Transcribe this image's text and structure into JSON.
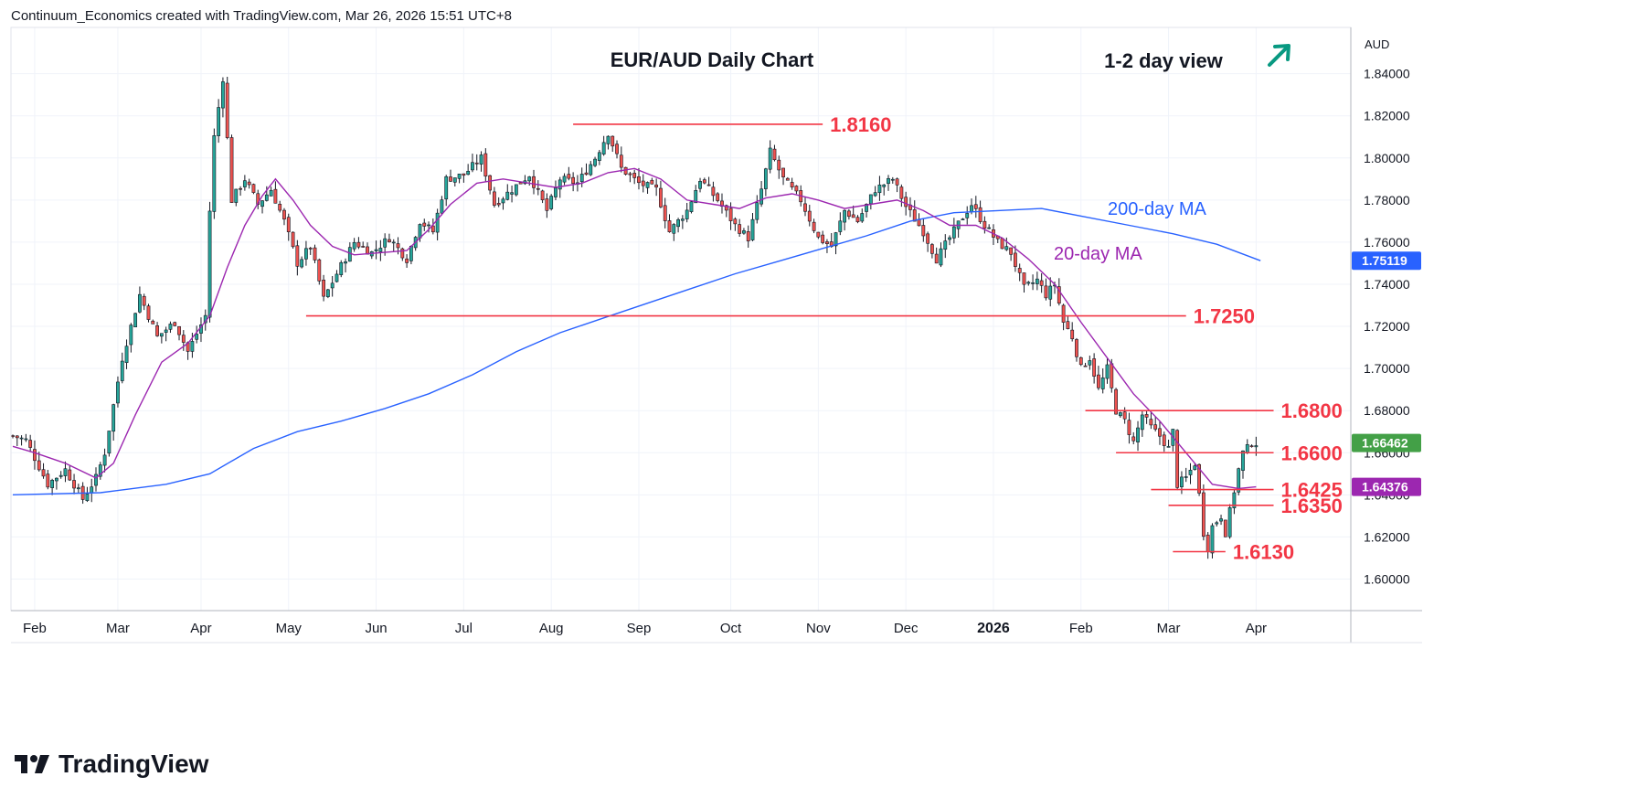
{
  "header": {
    "attribution": "Continuum_Economics created with TradingView.com, Mar 26, 2026 15:51 UTC+8"
  },
  "brand": {
    "name": "TradingView"
  },
  "chart_data": {
    "type": "candlestick",
    "title": "EUR/AUD Daily Chart",
    "subtitle": "1-2 day view",
    "view_direction": "up",
    "currency_label": "AUD",
    "ylim": [
      1.585,
      1.862
    ],
    "y_ticks": [
      {
        "value": 1.84,
        "label": "1.84000"
      },
      {
        "value": 1.82,
        "label": "1.82000"
      },
      {
        "value": 1.8,
        "label": "1.80000"
      },
      {
        "value": 1.78,
        "label": "1.78000"
      },
      {
        "value": 1.76,
        "label": "1.76000"
      },
      {
        "value": 1.74,
        "label": "1.74000"
      },
      {
        "value": 1.72,
        "label": "1.72000"
      },
      {
        "value": 1.7,
        "label": "1.70000"
      },
      {
        "value": 1.68,
        "label": "1.68000"
      },
      {
        "value": 1.66,
        "label": "1.66000"
      },
      {
        "value": 1.64,
        "label": "1.64000"
      },
      {
        "value": 1.62,
        "label": "1.62000"
      },
      {
        "value": 1.6,
        "label": "1.60000"
      }
    ],
    "x_ticks": [
      {
        "t": 5,
        "label": "Feb"
      },
      {
        "t": 24,
        "label": "Mar"
      },
      {
        "t": 43,
        "label": "Apr"
      },
      {
        "t": 63,
        "label": "May"
      },
      {
        "t": 83,
        "label": "Jun"
      },
      {
        "t": 103,
        "label": "Jul"
      },
      {
        "t": 123,
        "label": "Aug"
      },
      {
        "t": 143,
        "label": "Sep"
      },
      {
        "t": 164,
        "label": "Oct"
      },
      {
        "t": 184,
        "label": "Nov"
      },
      {
        "t": 204,
        "label": "Dec"
      },
      {
        "t": 224,
        "label": "2026"
      },
      {
        "t": 244,
        "label": "Feb"
      },
      {
        "t": 264,
        "label": "Mar"
      },
      {
        "t": 284,
        "label": "Apr"
      }
    ],
    "price_key": [
      {
        "t": 0,
        "v": 1.668
      },
      {
        "t": 3,
        "v": 1.666
      },
      {
        "t": 8,
        "v": 1.645
      },
      {
        "t": 12,
        "v": 1.652
      },
      {
        "t": 16,
        "v": 1.638
      },
      {
        "t": 19,
        "v": 1.648
      },
      {
        "t": 21,
        "v": 1.66
      },
      {
        "t": 25,
        "v": 1.705
      },
      {
        "t": 29,
        "v": 1.735
      },
      {
        "t": 33,
        "v": 1.715
      },
      {
        "t": 37,
        "v": 1.722
      },
      {
        "t": 40,
        "v": 1.708
      },
      {
        "t": 44,
        "v": 1.725
      },
      {
        "t": 45,
        "v": 1.775
      },
      {
        "t": 46,
        "v": 1.81
      },
      {
        "t": 48,
        "v": 1.838
      },
      {
        "t": 50,
        "v": 1.78
      },
      {
        "t": 53,
        "v": 1.79
      },
      {
        "t": 56,
        "v": 1.778
      },
      {
        "t": 59,
        "v": 1.785
      },
      {
        "t": 62,
        "v": 1.77
      },
      {
        "t": 65,
        "v": 1.75
      },
      {
        "t": 68,
        "v": 1.758
      },
      {
        "t": 71,
        "v": 1.733
      },
      {
        "t": 74,
        "v": 1.745
      },
      {
        "t": 78,
        "v": 1.76
      },
      {
        "t": 82,
        "v": 1.755
      },
      {
        "t": 86,
        "v": 1.762
      },
      {
        "t": 90,
        "v": 1.752
      },
      {
        "t": 93,
        "v": 1.77
      },
      {
        "t": 96,
        "v": 1.765
      },
      {
        "t": 99,
        "v": 1.79
      },
      {
        "t": 103,
        "v": 1.792
      },
      {
        "t": 107,
        "v": 1.8
      },
      {
        "t": 110,
        "v": 1.778
      },
      {
        "t": 114,
        "v": 1.785
      },
      {
        "t": 118,
        "v": 1.792
      },
      {
        "t": 122,
        "v": 1.775
      },
      {
        "t": 125,
        "v": 1.79
      },
      {
        "t": 129,
        "v": 1.788
      },
      {
        "t": 133,
        "v": 1.8
      },
      {
        "t": 136,
        "v": 1.812
      },
      {
        "t": 139,
        "v": 1.795
      },
      {
        "t": 143,
        "v": 1.788
      },
      {
        "t": 147,
        "v": 1.785
      },
      {
        "t": 150,
        "v": 1.765
      },
      {
        "t": 154,
        "v": 1.775
      },
      {
        "t": 157,
        "v": 1.79
      },
      {
        "t": 161,
        "v": 1.78
      },
      {
        "t": 165,
        "v": 1.768
      },
      {
        "t": 168,
        "v": 1.762
      },
      {
        "t": 171,
        "v": 1.785
      },
      {
        "t": 173,
        "v": 1.803
      },
      {
        "t": 176,
        "v": 1.79
      },
      {
        "t": 180,
        "v": 1.78
      },
      {
        "t": 184,
        "v": 1.762
      },
      {
        "t": 187,
        "v": 1.758
      },
      {
        "t": 190,
        "v": 1.775
      },
      {
        "t": 193,
        "v": 1.77
      },
      {
        "t": 197,
        "v": 1.785
      },
      {
        "t": 201,
        "v": 1.79
      },
      {
        "t": 204,
        "v": 1.777
      },
      {
        "t": 208,
        "v": 1.765
      },
      {
        "t": 211,
        "v": 1.752
      },
      {
        "t": 214,
        "v": 1.762
      },
      {
        "t": 217,
        "v": 1.772
      },
      {
        "t": 219,
        "v": 1.778
      },
      {
        "t": 222,
        "v": 1.768
      },
      {
        "t": 225,
        "v": 1.76
      },
      {
        "t": 228,
        "v": 1.755
      },
      {
        "t": 231,
        "v": 1.738
      },
      {
        "t": 234,
        "v": 1.742
      },
      {
        "t": 236,
        "v": 1.735
      },
      {
        "t": 238,
        "v": 1.74
      },
      {
        "t": 240,
        "v": 1.722
      },
      {
        "t": 242,
        "v": 1.715
      },
      {
        "t": 244,
        "v": 1.7
      },
      {
        "t": 246,
        "v": 1.705
      },
      {
        "t": 248,
        "v": 1.69
      },
      {
        "t": 250,
        "v": 1.7
      },
      {
        "t": 252,
        "v": 1.68
      },
      {
        "t": 254,
        "v": 1.675
      },
      {
        "t": 256,
        "v": 1.665
      },
      {
        "t": 258,
        "v": 1.678
      },
      {
        "t": 260,
        "v": 1.672
      },
      {
        "t": 262,
        "v": 1.668
      },
      {
        "t": 264,
        "v": 1.662
      },
      {
        "t": 265,
        "v": 1.67
      },
      {
        "t": 266,
        "v": 1.645
      },
      {
        "t": 268,
        "v": 1.648
      },
      {
        "t": 270,
        "v": 1.655
      },
      {
        "t": 271,
        "v": 1.64
      },
      {
        "t": 272,
        "v": 1.622
      },
      {
        "t": 273,
        "v": 1.615
      },
      {
        "t": 274,
        "v": 1.625
      },
      {
        "t": 276,
        "v": 1.63
      },
      {
        "t": 277,
        "v": 1.622
      },
      {
        "t": 278,
        "v": 1.632
      },
      {
        "t": 279,
        "v": 1.642
      },
      {
        "t": 280,
        "v": 1.652
      },
      {
        "t": 281,
        "v": 1.66
      },
      {
        "t": 282,
        "v": 1.662
      },
      {
        "t": 283,
        "v": 1.665
      },
      {
        "t": 284,
        "v": 1.6646
      }
    ],
    "ma_200": {
      "label": "200-day MA",
      "color": "#2962ff",
      "points": [
        {
          "t": 0,
          "v": 1.64
        },
        {
          "t": 20,
          "v": 1.641
        },
        {
          "t": 35,
          "v": 1.645
        },
        {
          "t": 45,
          "v": 1.65
        },
        {
          "t": 55,
          "v": 1.662
        },
        {
          "t": 65,
          "v": 1.67
        },
        {
          "t": 75,
          "v": 1.675
        },
        {
          "t": 85,
          "v": 1.681
        },
        {
          "t": 95,
          "v": 1.688
        },
        {
          "t": 105,
          "v": 1.697
        },
        {
          "t": 115,
          "v": 1.708
        },
        {
          "t": 125,
          "v": 1.717
        },
        {
          "t": 135,
          "v": 1.724
        },
        {
          "t": 145,
          "v": 1.731
        },
        {
          "t": 155,
          "v": 1.738
        },
        {
          "t": 165,
          "v": 1.745
        },
        {
          "t": 175,
          "v": 1.751
        },
        {
          "t": 185,
          "v": 1.757
        },
        {
          "t": 195,
          "v": 1.763
        },
        {
          "t": 205,
          "v": 1.77
        },
        {
          "t": 215,
          "v": 1.774
        },
        {
          "t": 225,
          "v": 1.775
        },
        {
          "t": 235,
          "v": 1.776
        },
        {
          "t": 245,
          "v": 1.772
        },
        {
          "t": 255,
          "v": 1.768
        },
        {
          "t": 265,
          "v": 1.764
        },
        {
          "t": 275,
          "v": 1.759
        },
        {
          "t": 285,
          "v": 1.7512
        }
      ]
    },
    "ma_20": {
      "label": "20-day MA",
      "color": "#9c27b0",
      "points": [
        {
          "t": 0,
          "v": 1.663
        },
        {
          "t": 5,
          "v": 1.66
        },
        {
          "t": 12,
          "v": 1.655
        },
        {
          "t": 19,
          "v": 1.648
        },
        {
          "t": 23,
          "v": 1.655
        },
        {
          "t": 28,
          "v": 1.678
        },
        {
          "t": 34,
          "v": 1.703
        },
        {
          "t": 40,
          "v": 1.712
        },
        {
          "t": 45,
          "v": 1.725
        },
        {
          "t": 49,
          "v": 1.748
        },
        {
          "t": 53,
          "v": 1.768
        },
        {
          "t": 57,
          "v": 1.782
        },
        {
          "t": 60,
          "v": 1.79
        },
        {
          "t": 64,
          "v": 1.78
        },
        {
          "t": 68,
          "v": 1.768
        },
        {
          "t": 73,
          "v": 1.758
        },
        {
          "t": 78,
          "v": 1.754
        },
        {
          "t": 84,
          "v": 1.755
        },
        {
          "t": 90,
          "v": 1.756
        },
        {
          "t": 95,
          "v": 1.766
        },
        {
          "t": 100,
          "v": 1.778
        },
        {
          "t": 106,
          "v": 1.788
        },
        {
          "t": 112,
          "v": 1.79
        },
        {
          "t": 118,
          "v": 1.788
        },
        {
          "t": 124,
          "v": 1.786
        },
        {
          "t": 130,
          "v": 1.788
        },
        {
          "t": 136,
          "v": 1.793
        },
        {
          "t": 142,
          "v": 1.795
        },
        {
          "t": 148,
          "v": 1.79
        },
        {
          "t": 154,
          "v": 1.78
        },
        {
          "t": 160,
          "v": 1.778
        },
        {
          "t": 166,
          "v": 1.776
        },
        {
          "t": 172,
          "v": 1.781
        },
        {
          "t": 178,
          "v": 1.783
        },
        {
          "t": 184,
          "v": 1.78
        },
        {
          "t": 190,
          "v": 1.776
        },
        {
          "t": 196,
          "v": 1.778
        },
        {
          "t": 202,
          "v": 1.78
        },
        {
          "t": 208,
          "v": 1.775
        },
        {
          "t": 214,
          "v": 1.768
        },
        {
          "t": 220,
          "v": 1.768
        },
        {
          "t": 226,
          "v": 1.762
        },
        {
          "t": 232,
          "v": 1.752
        },
        {
          "t": 238,
          "v": 1.74
        },
        {
          "t": 244,
          "v": 1.722
        },
        {
          "t": 250,
          "v": 1.705
        },
        {
          "t": 256,
          "v": 1.688
        },
        {
          "t": 262,
          "v": 1.675
        },
        {
          "t": 268,
          "v": 1.66
        },
        {
          "t": 274,
          "v": 1.645
        },
        {
          "t": 280,
          "v": 1.643
        },
        {
          "t": 284,
          "v": 1.6438
        }
      ]
    },
    "levels": [
      {
        "value": 1.816,
        "label": "1.8160",
        "t_start": 128,
        "t_end": 185
      },
      {
        "value": 1.725,
        "label": "1.7250",
        "t_start": 67,
        "t_end": 268
      },
      {
        "value": 1.68,
        "label": "1.6800",
        "t_start": 245,
        "t_end": 288
      },
      {
        "value": 1.66,
        "label": "1.6600",
        "t_start": 252,
        "t_end": 288
      },
      {
        "value": 1.6425,
        "label": "1.6425",
        "t_start": 260,
        "t_end": 288
      },
      {
        "value": 1.635,
        "label": "1.6350",
        "t_start": 264,
        "t_end": 288
      },
      {
        "value": 1.613,
        "label": "1.6130",
        "t_start": 265,
        "t_end": 277
      }
    ],
    "price_badges": [
      {
        "value": 1.7512,
        "label": "1.75119",
        "color": "#2962ff"
      },
      {
        "value": 1.6646,
        "label": "1.66462",
        "color": "#43a047"
      },
      {
        "value": 1.6438,
        "label": "1.64376",
        "color": "#9c27b0"
      }
    ],
    "colors": {
      "up": "#26a69a",
      "down": "#ef5350",
      "level": "#f23645",
      "grid": "#f0f3fa",
      "arrow": "#089981"
    }
  }
}
